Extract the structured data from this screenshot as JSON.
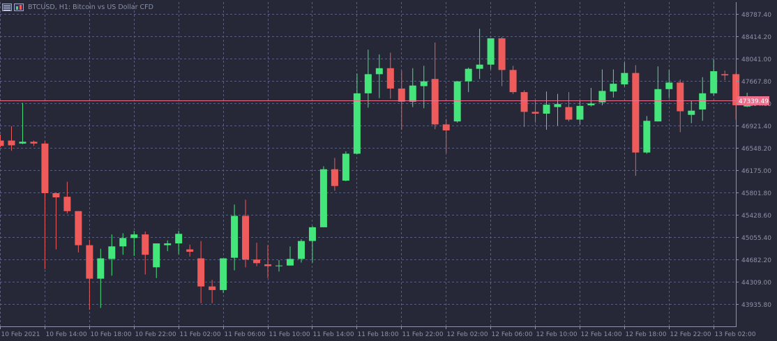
{
  "window": {
    "title": "BTCUSD, H1:  Bitcoin vs US Dollar CFD",
    "icons": [
      "window-list-icon",
      "chart-mode-icon"
    ]
  },
  "colors": {
    "background": "#262837",
    "grid": "#59607d",
    "bull": "#44e57b",
    "bear": "#ef5b5b",
    "axis_text": "#8d93aa",
    "current_price_line": "#ec6f8e"
  },
  "current_price": {
    "value": 47339.49,
    "label": "47339.49"
  },
  "chart_data": {
    "type": "candlestick",
    "symbol": "BTCUSD",
    "timeframe": "H1",
    "grid": true,
    "y_ticks": [
      "48787.40",
      "48414.20",
      "48041.00",
      "47667.80",
      "47294.60",
      "46921.40",
      "46548.20",
      "46175.00",
      "45801.80",
      "45428.60",
      "45055.40",
      "44682.20",
      "44309.00",
      "43935.80"
    ],
    "x_ticks": [
      "10 Feb 2021",
      "10 Feb 14:00",
      "10 Feb 18:00",
      "10 Feb 22:00",
      "11 Feb 02:00",
      "11 Feb 06:00",
      "11 Feb 10:00",
      "11 Feb 14:00",
      "11 Feb 18:00",
      "11 Feb 22:00",
      "12 Feb 02:00",
      "12 Feb 06:00",
      "12 Feb 10:00",
      "12 Feb 14:00",
      "12 Feb 18:00",
      "12 Feb 22:00",
      "13 Feb 02:00"
    ],
    "candles": [
      {
        "o": 46670,
        "h": 46770,
        "l": 46560,
        "c": 46580
      },
      {
        "o": 46670,
        "h": 46910,
        "l": 46500,
        "c": 46590
      },
      {
        "o": 46620,
        "h": 47300,
        "l": 46610,
        "c": 46650
      },
      {
        "o": 46650,
        "h": 46670,
        "l": 46580,
        "c": 46620
      },
      {
        "o": 46620,
        "h": 46660,
        "l": 44520,
        "c": 45790
      },
      {
        "o": 45790,
        "h": 45800,
        "l": 44850,
        "c": 45720
      },
      {
        "o": 45730,
        "h": 45980,
        "l": 45450,
        "c": 45490
      },
      {
        "o": 45490,
        "h": 45490,
        "l": 44800,
        "c": 44920
      },
      {
        "o": 44920,
        "h": 45010,
        "l": 43840,
        "c": 44360
      },
      {
        "o": 44360,
        "h": 44860,
        "l": 43870,
        "c": 44700
      },
      {
        "o": 44690,
        "h": 45100,
        "l": 44410,
        "c": 44900
      },
      {
        "o": 44900,
        "h": 45120,
        "l": 44760,
        "c": 45040
      },
      {
        "o": 45040,
        "h": 45160,
        "l": 44740,
        "c": 45100
      },
      {
        "o": 45100,
        "h": 45150,
        "l": 44430,
        "c": 44760
      },
      {
        "o": 44550,
        "h": 44940,
        "l": 44370,
        "c": 44950
      },
      {
        "o": 44920,
        "h": 45000,
        "l": 44820,
        "c": 44950
      },
      {
        "o": 44950,
        "h": 45160,
        "l": 44770,
        "c": 45110
      },
      {
        "o": 44850,
        "h": 44930,
        "l": 44730,
        "c": 44810
      },
      {
        "o": 44700,
        "h": 44990,
        "l": 43950,
        "c": 44230
      },
      {
        "o": 44230,
        "h": 44340,
        "l": 43950,
        "c": 44170
      },
      {
        "o": 44170,
        "h": 44680,
        "l": 44120,
        "c": 44700
      },
      {
        "o": 44710,
        "h": 45600,
        "l": 44500,
        "c": 45410
      },
      {
        "o": 45410,
        "h": 45680,
        "l": 44550,
        "c": 44680
      },
      {
        "o": 44680,
        "h": 44960,
        "l": 44570,
        "c": 44620
      },
      {
        "o": 44600,
        "h": 44920,
        "l": 44370,
        "c": 44570
      },
      {
        "o": 44570,
        "h": 44670,
        "l": 44480,
        "c": 44580
      },
      {
        "o": 44580,
        "h": 44900,
        "l": 44580,
        "c": 44690
      },
      {
        "o": 44690,
        "h": 45020,
        "l": 44630,
        "c": 44990
      },
      {
        "o": 44990,
        "h": 45240,
        "l": 44630,
        "c": 45220
      },
      {
        "o": 45220,
        "h": 46240,
        "l": 45220,
        "c": 46190
      },
      {
        "o": 46190,
        "h": 46380,
        "l": 45830,
        "c": 45910
      },
      {
        "o": 46000,
        "h": 46490,
        "l": 45990,
        "c": 46450
      },
      {
        "o": 46450,
        "h": 47790,
        "l": 46440,
        "c": 47460
      },
      {
        "o": 47460,
        "h": 48190,
        "l": 47220,
        "c": 47780
      },
      {
        "o": 47780,
        "h": 48110,
        "l": 47380,
        "c": 47880
      },
      {
        "o": 47880,
        "h": 48140,
        "l": 47370,
        "c": 47540
      },
      {
        "o": 47540,
        "h": 47840,
        "l": 46850,
        "c": 47320
      },
      {
        "o": 47320,
        "h": 47880,
        "l": 47230,
        "c": 47590
      },
      {
        "o": 47580,
        "h": 47920,
        "l": 47210,
        "c": 47660
      },
      {
        "o": 47700,
        "h": 48310,
        "l": 46860,
        "c": 46940
      },
      {
        "o": 46940,
        "h": 47030,
        "l": 46460,
        "c": 46840
      },
      {
        "o": 46990,
        "h": 47660,
        "l": 46970,
        "c": 47660
      },
      {
        "o": 47660,
        "h": 47890,
        "l": 47480,
        "c": 47870
      },
      {
        "o": 47870,
        "h": 48540,
        "l": 47700,
        "c": 47940
      },
      {
        "o": 47940,
        "h": 48380,
        "l": 47860,
        "c": 48380
      },
      {
        "o": 48380,
        "h": 48400,
        "l": 47580,
        "c": 47850
      },
      {
        "o": 47850,
        "h": 47920,
        "l": 47450,
        "c": 47480
      },
      {
        "o": 47480,
        "h": 47510,
        "l": 46900,
        "c": 47150
      },
      {
        "o": 47150,
        "h": 47330,
        "l": 46970,
        "c": 47120
      },
      {
        "o": 47120,
        "h": 47490,
        "l": 46850,
        "c": 47270
      },
      {
        "o": 47230,
        "h": 47450,
        "l": 46920,
        "c": 47280
      },
      {
        "o": 47230,
        "h": 47480,
        "l": 46990,
        "c": 47020
      },
      {
        "o": 47020,
        "h": 47330,
        "l": 46940,
        "c": 47250
      },
      {
        "o": 47260,
        "h": 47550,
        "l": 47240,
        "c": 47290
      },
      {
        "o": 47310,
        "h": 47860,
        "l": 47260,
        "c": 47500
      },
      {
        "o": 47490,
        "h": 47860,
        "l": 47390,
        "c": 47620
      },
      {
        "o": 47610,
        "h": 47980,
        "l": 47570,
        "c": 47800
      },
      {
        "o": 47800,
        "h": 47930,
        "l": 46080,
        "c": 46470
      },
      {
        "o": 46470,
        "h": 47080,
        "l": 46450,
        "c": 47000
      },
      {
        "o": 46990,
        "h": 47910,
        "l": 46990,
        "c": 47530
      },
      {
        "o": 47530,
        "h": 47850,
        "l": 47380,
        "c": 47640
      },
      {
        "o": 47640,
        "h": 47690,
        "l": 46810,
        "c": 47160
      },
      {
        "o": 47100,
        "h": 47330,
        "l": 46960,
        "c": 47170
      },
      {
        "o": 47190,
        "h": 47730,
        "l": 47000,
        "c": 47460
      },
      {
        "o": 47460,
        "h": 48030,
        "l": 47420,
        "c": 47830
      },
      {
        "o": 47780,
        "h": 47840,
        "l": 47680,
        "c": 47760
      },
      {
        "o": 47780,
        "h": 47800,
        "l": 47020,
        "c": 47260
      },
      {
        "o": 47240,
        "h": 47470,
        "l": 47230,
        "c": 47410
      }
    ]
  }
}
